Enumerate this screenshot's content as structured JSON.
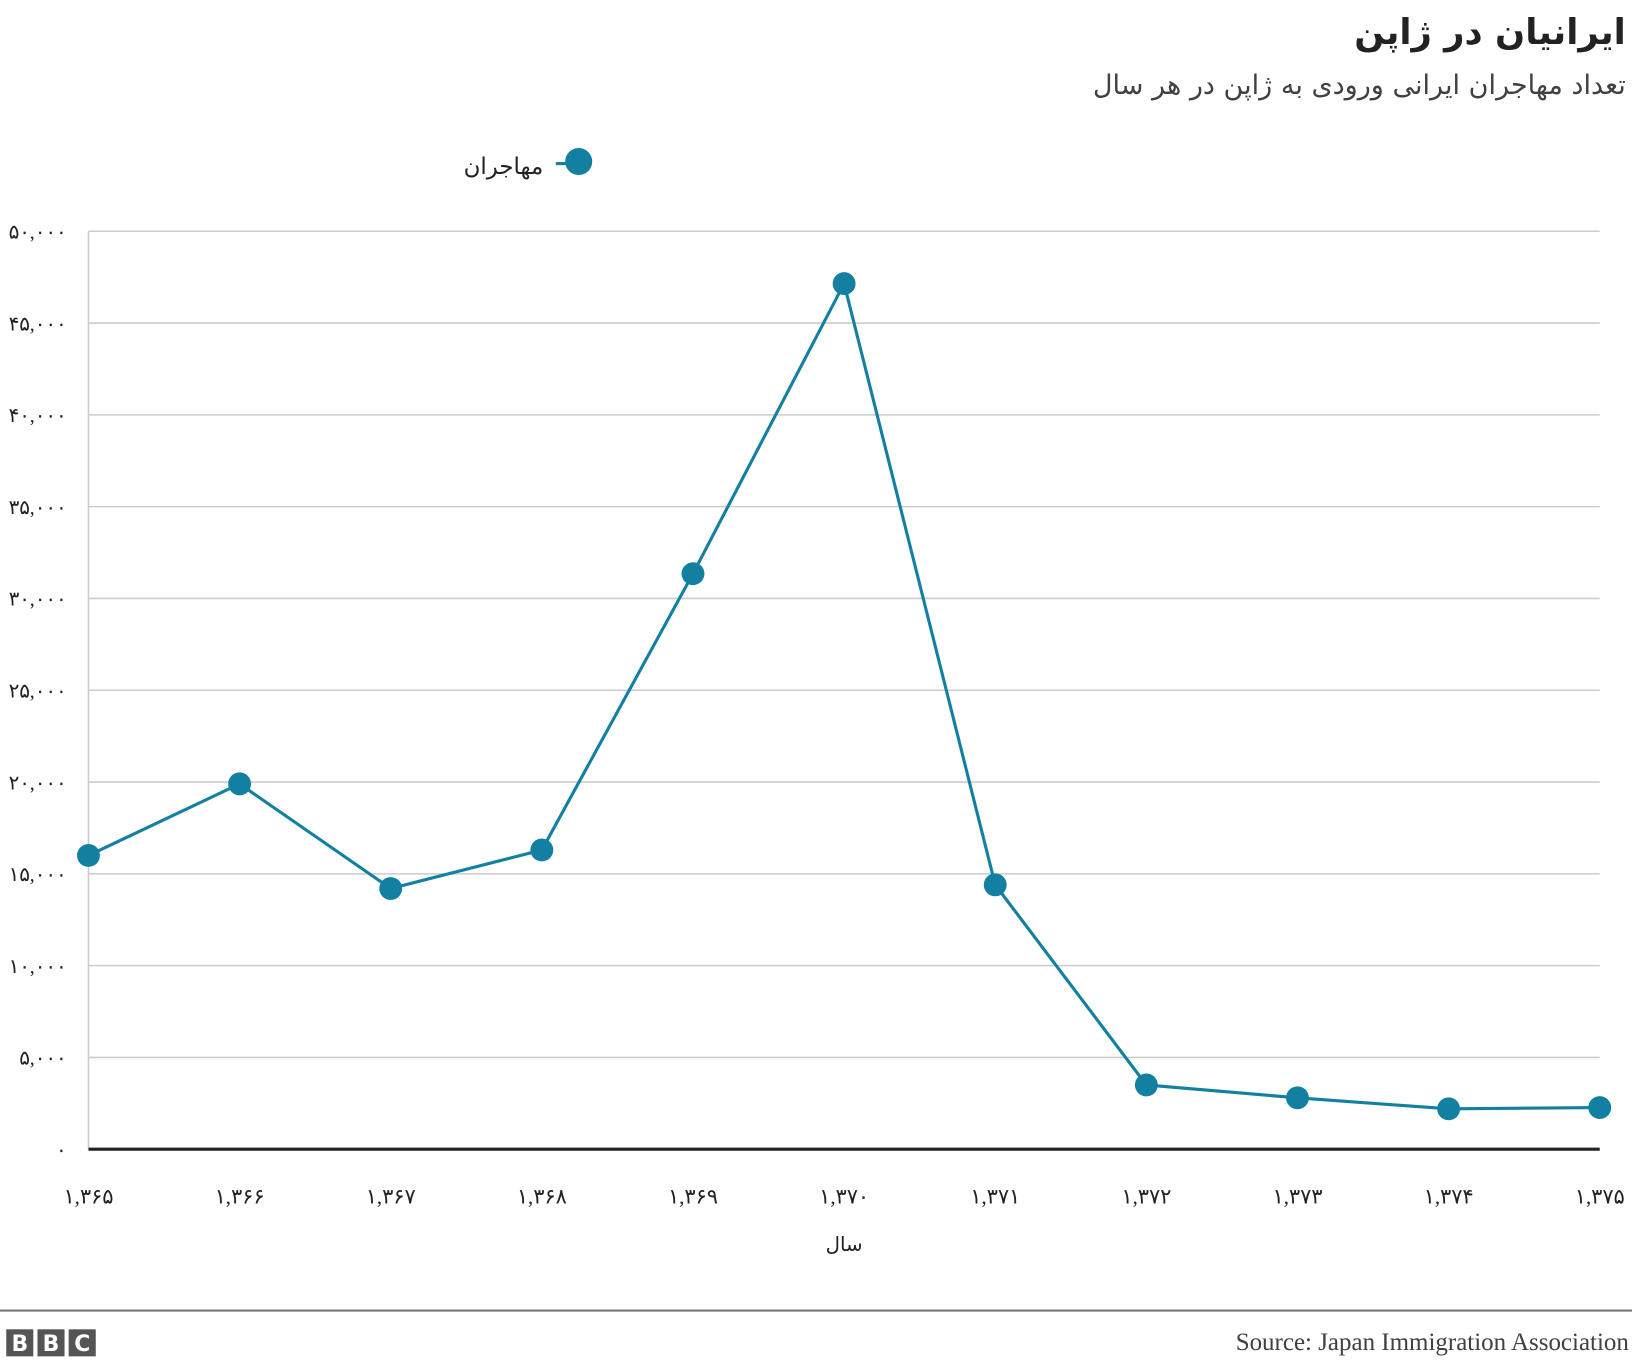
{
  "chart_data": {
    "type": "line",
    "title": "ایرانیان در ژاپن",
    "subtitle": "تعداد مهاجران ایرانی ورودی به ژاپن در هر سال",
    "xlabel": "سال",
    "ylabel": "",
    "categories": [
      "۱,۳۶۵",
      "۱,۳۶۶",
      "۱,۳۶۷",
      "۱,۳۶۸",
      "۱,۳۶۹",
      "۱,۳۷۰",
      "۱,۳۷۱",
      "۱,۳۷۲",
      "۱,۳۷۳",
      "۱,۳۷۴",
      "۱,۳۷۵"
    ],
    "series": [
      {
        "name": "مهاجران",
        "color": "#1380A1",
        "values": [
          16000,
          19900,
          14200,
          16300,
          31350,
          47150,
          14400,
          3500,
          2800,
          2200,
          2270
        ]
      }
    ],
    "ylim": [
      0,
      50000
    ],
    "yticks": [
      0,
      5000,
      10000,
      15000,
      20000,
      25000,
      30000,
      35000,
      40000,
      45000,
      50000
    ],
    "ytick_labels": [
      "۰",
      "۵,۰۰۰",
      "۱۰,۰۰۰",
      "۱۵,۰۰۰",
      "۲۰,۰۰۰",
      "۲۵,۰۰۰",
      "۳۰,۰۰۰",
      "۳۵,۰۰۰",
      "۴۰,۰۰۰",
      "۴۵,۰۰۰",
      "۵۰,۰۰۰"
    ],
    "grid": true,
    "legend": "top-left"
  },
  "footer": {
    "logo": "BBC",
    "source": "Source: Japan Immigration Association"
  }
}
